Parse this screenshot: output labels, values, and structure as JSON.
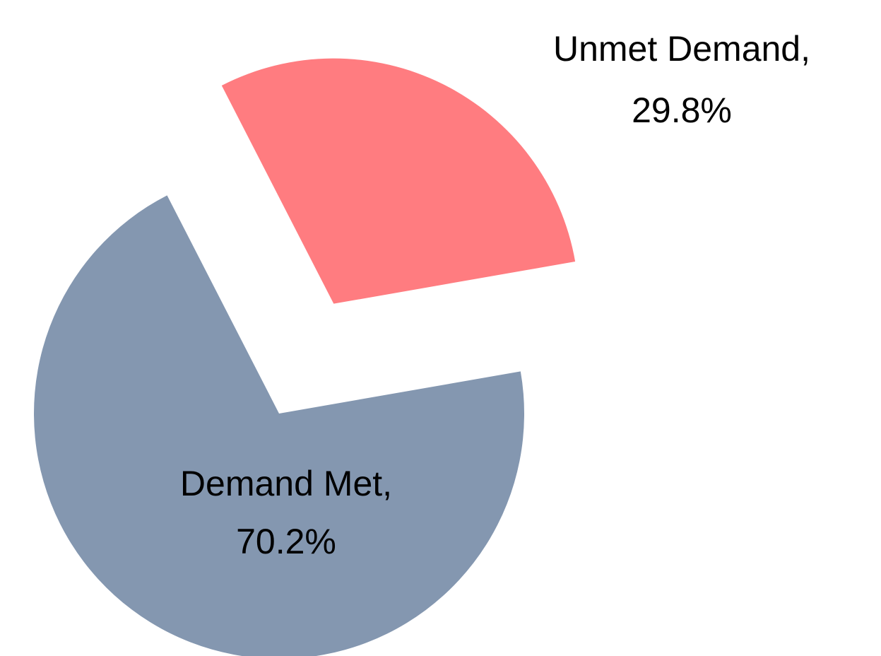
{
  "chart_data": {
    "type": "pie",
    "categories": [
      "Demand Met",
      "Unmet Demand"
    ],
    "values": [
      70.2,
      29.8
    ],
    "value_labels": [
      "70.2%",
      "29.8%"
    ],
    "label_separator": ",",
    "colors": [
      "#8497b0",
      "#ff7c80"
    ],
    "explode": [
      0,
      0.5
    ]
  }
}
